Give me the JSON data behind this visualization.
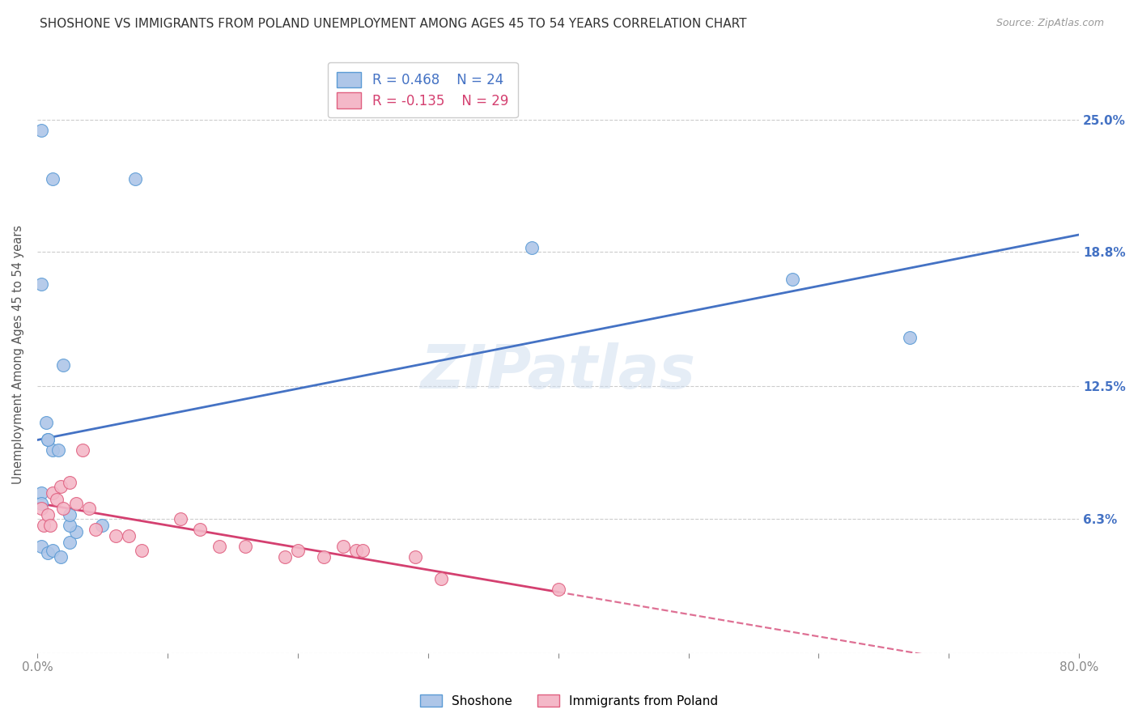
{
  "title": "SHOSHONE VS IMMIGRANTS FROM POLAND UNEMPLOYMENT AMONG AGES 45 TO 54 YEARS CORRELATION CHART",
  "source": "Source: ZipAtlas.com",
  "ylabel": "Unemployment Among Ages 45 to 54 years",
  "background_color": "#ffffff",
  "watermark_text": "ZIPatlas",
  "xlim": [
    0.0,
    0.8
  ],
  "ylim": [
    0.0,
    0.28
  ],
  "ytick_vals": [
    0.0,
    0.063,
    0.125,
    0.188,
    0.25
  ],
  "ytick_labels_right": [
    "",
    "6.3%",
    "12.5%",
    "18.8%",
    "25.0%"
  ],
  "xtick_vals": [
    0.0,
    0.1,
    0.2,
    0.3,
    0.4,
    0.5,
    0.6,
    0.7,
    0.8
  ],
  "xtick_labels": [
    "0.0%",
    "",
    "",
    "",
    "",
    "",
    "",
    "",
    "80.0%"
  ],
  "shoshone_R": 0.468,
  "shoshone_N": 24,
  "poland_R": -0.135,
  "poland_N": 29,
  "shoshone_color": "#aec6e8",
  "shoshone_edge_color": "#5b9bd5",
  "shoshone_line_color": "#4472c4",
  "poland_color": "#f4b8c8",
  "poland_edge_color": "#e06080",
  "poland_line_color": "#d44070",
  "legend_shoshone": "Shoshone",
  "legend_poland": "Immigrants from Poland",
  "right_axis_color": "#4472c4",
  "shoshone_x": [
    0.003,
    0.012,
    0.075,
    0.003,
    0.007,
    0.003,
    0.008,
    0.012,
    0.016,
    0.02,
    0.025,
    0.03,
    0.003,
    0.008,
    0.012,
    0.018,
    0.025,
    0.38,
    0.58,
    0.67,
    0.003,
    0.025,
    0.008,
    0.05
  ],
  "shoshone_y": [
    0.245,
    0.222,
    0.222,
    0.173,
    0.108,
    0.075,
    0.1,
    0.095,
    0.095,
    0.135,
    0.052,
    0.057,
    0.05,
    0.047,
    0.048,
    0.045,
    0.06,
    0.19,
    0.175,
    0.148,
    0.07,
    0.065,
    0.1,
    0.06
  ],
  "poland_x": [
    0.003,
    0.005,
    0.008,
    0.01,
    0.012,
    0.015,
    0.018,
    0.02,
    0.025,
    0.03,
    0.035,
    0.04,
    0.045,
    0.06,
    0.07,
    0.08,
    0.11,
    0.125,
    0.14,
    0.16,
    0.19,
    0.2,
    0.22,
    0.235,
    0.245,
    0.25,
    0.29,
    0.31,
    0.4
  ],
  "poland_y": [
    0.068,
    0.06,
    0.065,
    0.06,
    0.075,
    0.072,
    0.078,
    0.068,
    0.08,
    0.07,
    0.095,
    0.068,
    0.058,
    0.055,
    0.055,
    0.048,
    0.063,
    0.058,
    0.05,
    0.05,
    0.045,
    0.048,
    0.045,
    0.05,
    0.048,
    0.048,
    0.045,
    0.035,
    0.03
  ],
  "grid_color": "#cccccc",
  "tick_color": "#888888"
}
